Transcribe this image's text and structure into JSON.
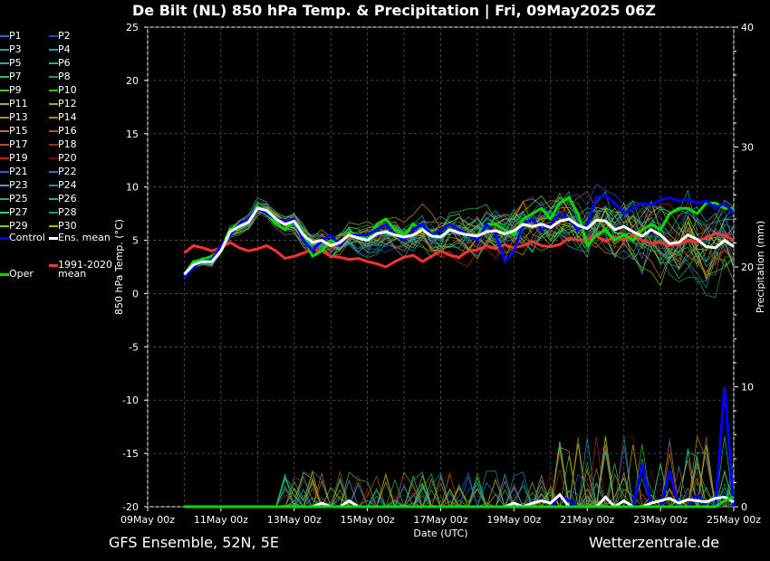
{
  "title": "De Bilt  (NL)  850 hPa Temp. & Precipitation | Fri, 09May2025 06Z",
  "footer": {
    "left": "GFS Ensemble, 52N, 5E",
    "right": "Wetterzentrale.de"
  },
  "legend": {
    "members": [
      "P1",
      "P2",
      "P3",
      "P4",
      "P5",
      "P6",
      "P7",
      "P8",
      "P9",
      "P10",
      "P11",
      "P12",
      "P13",
      "P14",
      "P15",
      "P16",
      "P17",
      "P18",
      "P19",
      "P20",
      "P21",
      "P22",
      "P23",
      "P24",
      "P25",
      "P26",
      "P27",
      "P28",
      "P29",
      "P30"
    ],
    "member_colors": [
      "#2f6fbf",
      "#1f4fbf",
      "#2a9fb0",
      "#1aa0c0",
      "#20b0a0",
      "#10c080",
      "#30c060",
      "#20a040",
      "#60c020",
      "#40c000",
      "#a0b020",
      "#c0a020",
      "#c09000",
      "#d08000",
      "#c07040",
      "#a06020",
      "#b05030",
      "#a03010",
      "#c02010",
      "#800000",
      "#3060c0",
      "#2080d0",
      "#40a0d0",
      "#2090b0",
      "#20b080",
      "#10c070",
      "#30d060",
      "#20a060",
      "#70d020",
      "#c0b000"
    ],
    "control": "Control",
    "ens_mean": "Ens. mean",
    "clim_mean": "1991-2020\nmean",
    "oper": "Oper",
    "control_color": "#0000ff",
    "ens_mean_color": "#ffffff",
    "clim_color": "#ff3030",
    "oper_color": "#00dd00"
  },
  "chart_data": {
    "type": "line",
    "xlabel": "Date (UTC)",
    "ylabel": "850 hPa Temp. (°C)",
    "y2label": "Precipitation (mm)",
    "ylim": [
      -20,
      25
    ],
    "y2lim": [
      0,
      40
    ],
    "yticks": [
      -20,
      -15,
      -10,
      -5,
      0,
      5,
      10,
      15,
      20,
      25
    ],
    "y2ticks": [
      0,
      10,
      20,
      30,
      40
    ],
    "xticks": [
      "09May 00z",
      "11May 00z",
      "13May 00z",
      "15May 00z",
      "17May 00z",
      "19May 00z",
      "21May 00z",
      "23May 00z",
      "25May 00z"
    ],
    "grid": true,
    "x_start_label": "09May 00z",
    "x_days": [
      1,
      1.25,
      1.5,
      1.75,
      2,
      2.25,
      2.5,
      2.75,
      3,
      3.25,
      3.5,
      3.75,
      4,
      4.25,
      4.5,
      4.75,
      5,
      5.25,
      5.5,
      5.75,
      6,
      6.25,
      6.5,
      6.75,
      7,
      7.25,
      7.5,
      7.75,
      8,
      8.25,
      8.5,
      8.75,
      9,
      9.25,
      9.5,
      9.75,
      10,
      10.25,
      10.5,
      10.75,
      11,
      11.25,
      11.5,
      11.75,
      12,
      12.25,
      12.5,
      12.75,
      13,
      13.25,
      13.5,
      13.75,
      14,
      14.25,
      14.5,
      14.75,
      15,
      15.25,
      15.5,
      15.75,
      16
    ],
    "series": [
      {
        "name": "Ens. mean",
        "values": [
          1.8,
          2.7,
          3.0,
          3.0,
          4.0,
          5.8,
          6.3,
          6.7,
          8.0,
          7.8,
          7.0,
          6.5,
          6.8,
          5.5,
          4.8,
          5.0,
          4.5,
          4.8,
          5.5,
          5.2,
          5.0,
          5.6,
          5.8,
          5.5,
          5.3,
          5.5,
          6.0,
          5.4,
          5.3,
          6.0,
          5.7,
          5.5,
          5.4,
          5.8,
          5.9,
          5.6,
          5.9,
          6.5,
          6.3,
          6.5,
          6.2,
          6.8,
          7.0,
          6.4,
          6.1,
          6.9,
          6.8,
          6.0,
          6.3,
          5.8,
          5.4,
          6.0,
          5.5,
          4.7,
          4.8,
          5.5,
          5.1,
          4.4,
          4.3,
          5.0,
          4.4
        ]
      },
      {
        "name": "Control",
        "values": [
          1.5,
          2.5,
          3.0,
          3.2,
          4.5,
          5.5,
          6.5,
          7.0,
          8.0,
          7.5,
          7.0,
          6.8,
          7.0,
          5.0,
          4.0,
          5.0,
          5.5,
          4.5,
          5.5,
          5.5,
          5.5,
          6.0,
          6.5,
          5.5,
          5.0,
          6.0,
          6.5,
          5.5,
          6.0,
          6.5,
          6.0,
          5.5,
          5.0,
          6.5,
          5.5,
          3.0,
          4.0,
          6.5,
          7.0,
          6.0,
          6.5,
          7.5,
          7.0,
          6.0,
          6.5,
          9.0,
          9.2,
          8.5,
          7.5,
          8.0,
          8.5,
          8.3,
          8.8,
          9.0,
          8.7,
          8.8,
          8.5,
          8.7,
          8.0,
          8.5,
          7.5
        ]
      },
      {
        "name": "Oper",
        "values": [
          1.8,
          3.0,
          3.2,
          3.5,
          4.2,
          6.0,
          6.5,
          6.8,
          8.2,
          7.5,
          6.5,
          6.0,
          7.0,
          5.5,
          3.5,
          4.0,
          5.0,
          4.5,
          5.8,
          5.5,
          5.0,
          6.5,
          7.0,
          6.0,
          5.5,
          6.5,
          6.0,
          5.5,
          6.0,
          6.5,
          6.0,
          5.5,
          5.5,
          6.5,
          6.5,
          6.0,
          5.5,
          7.0,
          7.5,
          8.0,
          7.0,
          8.5,
          9.0,
          7.5,
          4.5,
          5.5,
          6.0,
          5.0,
          5.5,
          5.0,
          6.0,
          6.5,
          6.0,
          7.5,
          8.0,
          8.0,
          7.5,
          8.5,
          8.5,
          8.0,
          8.0
        ]
      },
      {
        "name": "1991-2020 mean",
        "values": [
          3.8,
          4.5,
          4.3,
          4.0,
          4.3,
          4.8,
          4.3,
          4.0,
          4.2,
          4.5,
          4.0,
          3.3,
          3.5,
          3.8,
          4.2,
          4.0,
          3.5,
          3.4,
          3.2,
          3.3,
          3.0,
          2.8,
          2.5,
          3.0,
          3.4,
          3.6,
          3.0,
          3.5,
          4.0,
          3.6,
          3.4,
          4.0,
          4.1,
          4.5,
          4.2,
          4.6,
          4.3,
          4.5,
          4.9,
          4.5,
          4.4,
          4.6,
          5.2,
          5.0,
          5.1,
          5.4,
          4.9,
          5.3,
          5.0,
          5.5,
          5.0,
          4.7,
          4.8,
          4.5,
          4.6,
          5.0,
          4.8,
          5.3,
          5.6,
          5.5,
          5.0
        ]
      }
    ],
    "precip_series": [
      {
        "name": "Control",
        "values": [
          0,
          0,
          0,
          0,
          0,
          0,
          0,
          0,
          0,
          0,
          0,
          0,
          0,
          0,
          0,
          0,
          0,
          0,
          0,
          0,
          0,
          0,
          0,
          0,
          0,
          0,
          0,
          0,
          0,
          0,
          0,
          0,
          0,
          0,
          0,
          0,
          0,
          0,
          0,
          0,
          0,
          1.0,
          0.5,
          0,
          0,
          0,
          0,
          0,
          0,
          0,
          3.5,
          0,
          0,
          3.0,
          0,
          0,
          1.0,
          0,
          0,
          10.0,
          0
        ]
      },
      {
        "name": "Ens. mean",
        "values": [
          0,
          0,
          0,
          0,
          0,
          0,
          0,
          0,
          0,
          0,
          0,
          0,
          0,
          0,
          0,
          0.3,
          0,
          0,
          0.5,
          0,
          0,
          0,
          0,
          0,
          0,
          0,
          0,
          0,
          0,
          0,
          0,
          0,
          0,
          0,
          0,
          0,
          0.3,
          0,
          0.3,
          0.5,
          0.3,
          1.0,
          0,
          0,
          0,
          0,
          0.8,
          0,
          0.5,
          0,
          0,
          0.3,
          0.5,
          0.7,
          0.3,
          0.6,
          0.5,
          0.4,
          0.7,
          0.8,
          0.4
        ]
      },
      {
        "name": "Oper",
        "values": [
          0,
          0,
          0,
          0,
          0,
          0,
          0,
          0,
          0,
          0,
          0,
          0,
          0,
          0,
          0,
          0,
          0,
          0,
          0,
          0,
          0,
          0,
          0,
          0,
          0,
          0,
          0,
          0,
          0,
          0,
          0,
          0,
          0,
          0,
          0,
          0,
          0,
          0,
          0,
          0,
          0,
          0,
          0,
          0,
          0,
          0,
          0,
          0,
          0,
          0,
          0,
          0,
          0,
          0,
          0,
          0,
          0,
          0,
          0,
          0.5,
          0.8
        ]
      }
    ]
  }
}
